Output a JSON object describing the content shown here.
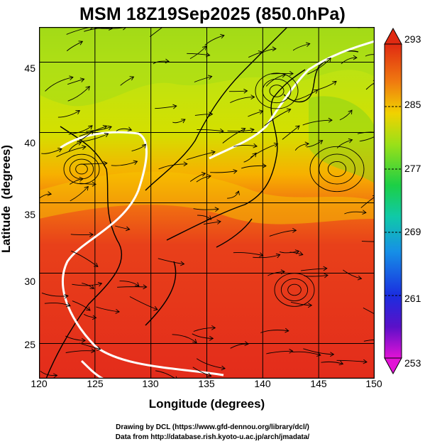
{
  "title": "MSM 18Z19Sep2025 (850.0hPa)",
  "map": {
    "xlabel": "Longitude (degrees)",
    "ylabel": "Latitude  (degrees)",
    "lon_ticks": [
      "120",
      "125",
      "130",
      "135",
      "140",
      "145",
      "150"
    ],
    "lat_ticks": [
      "45",
      "40",
      "35",
      "30",
      "25"
    ],
    "lon_range": [
      120,
      150
    ],
    "lat_range": [
      22.5,
      47.5
    ],
    "colors": {
      "warm": "#e8331c",
      "cool": "#b9e314",
      "contour": "#ffffff",
      "coast": "#000000"
    }
  },
  "colorbar": {
    "ticks": [
      "293",
      "285",
      "277",
      "269",
      "261",
      "253"
    ],
    "range": [
      253,
      293
    ]
  },
  "credits": {
    "line1": "Drawing by DCL (https://www.gfd-dennou.org/library/dcl/)",
    "line2": "Data from http://database.rish.kyoto-u.ac.jp/arch/jmadata/"
  }
}
